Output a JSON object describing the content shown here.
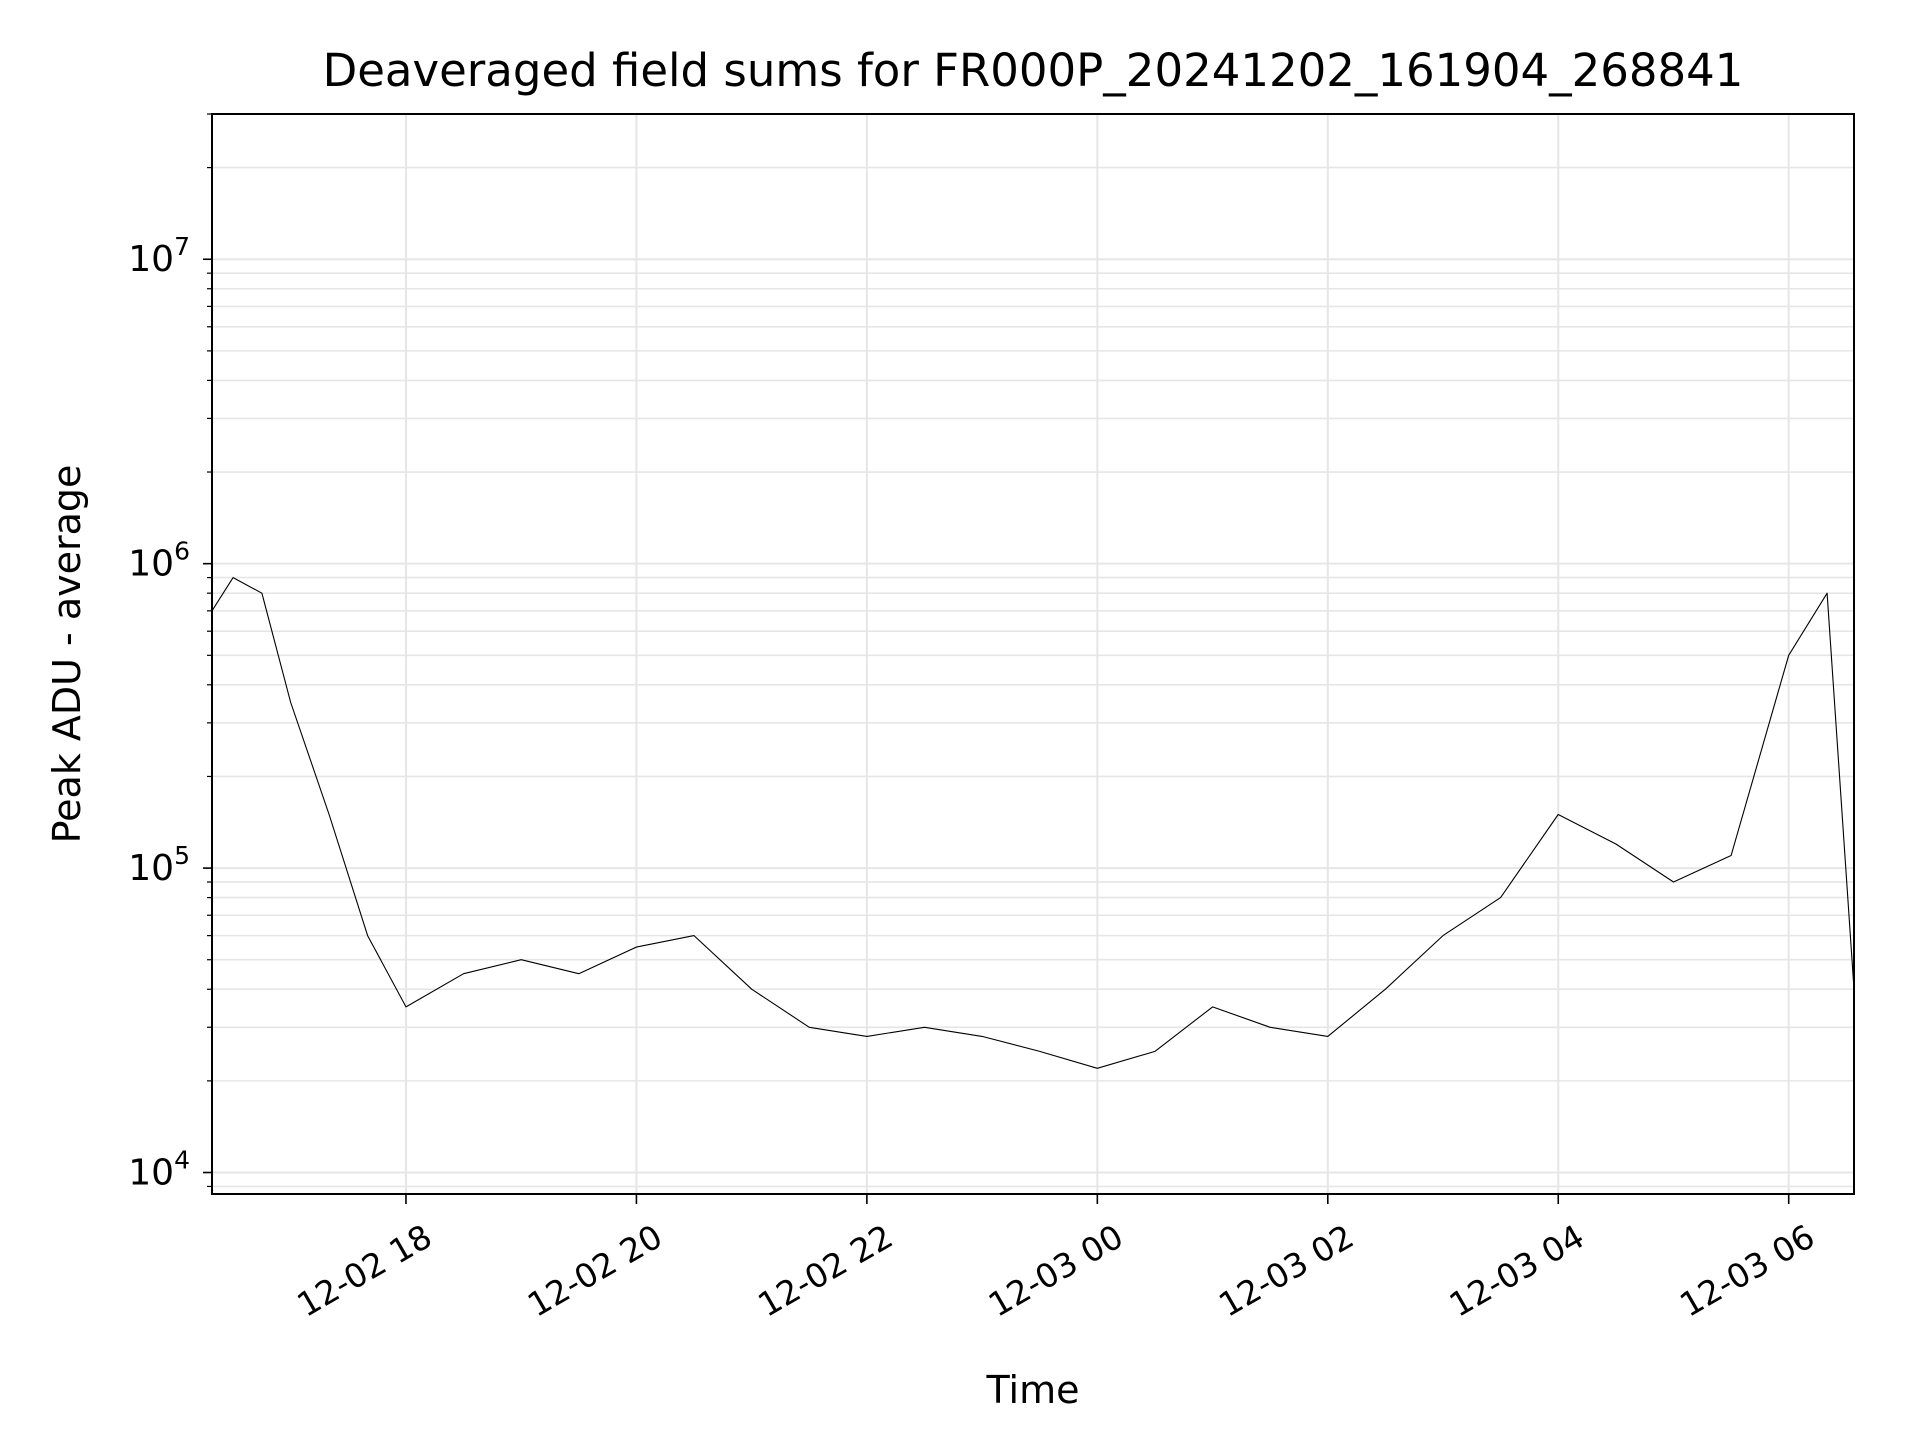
{
  "chart_data": {
    "type": "line",
    "title": "Deaveraged field sums for FR000P_20241202_161904_268841",
    "xlabel": "Time",
    "ylabel": "Peak ADU - average",
    "y_scale": "log",
    "ylim": [
      8500,
      30000000
    ],
    "xlim": [
      "2024-12-02 16:19",
      "2024-12-03 06:34"
    ],
    "grid": true,
    "line_color": "#000000",
    "grid_color": "#e6e6e6",
    "x_ticks": [
      {
        "t": "2024-12-02 18:00",
        "label": "12-02 18"
      },
      {
        "t": "2024-12-02 20:00",
        "label": "12-02 20"
      },
      {
        "t": "2024-12-02 22:00",
        "label": "12-02 22"
      },
      {
        "t": "2024-12-03 00:00",
        "label": "12-03 00"
      },
      {
        "t": "2024-12-03 02:00",
        "label": "12-03 02"
      },
      {
        "t": "2024-12-03 04:00",
        "label": "12-03 04"
      },
      {
        "t": "2024-12-03 06:00",
        "label": "12-03 06"
      }
    ],
    "y_ticks": [
      {
        "value": 10000,
        "base": "10",
        "exp": "4"
      },
      {
        "value": 100000,
        "base": "10",
        "exp": "5"
      },
      {
        "value": 1000000,
        "base": "10",
        "exp": "6"
      },
      {
        "value": 10000000,
        "base": "10",
        "exp": "7"
      }
    ],
    "series": [
      {
        "x": [
          "2024-12-02 16:19",
          "2024-12-02 16:30",
          "2024-12-02 16:45",
          "2024-12-02 17:00",
          "2024-12-02 17:20",
          "2024-12-02 17:40",
          "2024-12-02 18:00",
          "2024-12-02 18:30",
          "2024-12-02 19:00",
          "2024-12-02 19:30",
          "2024-12-02 20:00",
          "2024-12-02 20:30",
          "2024-12-02 21:00",
          "2024-12-02 21:30",
          "2024-12-02 22:00",
          "2024-12-02 22:30",
          "2024-12-02 23:00",
          "2024-12-02 23:30",
          "2024-12-03 00:00",
          "2024-12-03 00:30",
          "2024-12-03 01:00",
          "2024-12-03 01:30",
          "2024-12-03 02:00",
          "2024-12-03 02:30",
          "2024-12-03 03:00",
          "2024-12-03 03:30",
          "2024-12-03 04:00",
          "2024-12-03 04:30",
          "2024-12-03 05:00",
          "2024-12-03 05:30",
          "2024-12-03 06:00",
          "2024-12-03 06:20",
          "2024-12-03 06:34"
        ],
        "y": [
          700000,
          900000,
          800000,
          350000,
          150000,
          60000,
          35000,
          45000,
          50000,
          45000,
          55000,
          60000,
          40000,
          30000,
          28000,
          30000,
          28000,
          25000,
          22000,
          25000,
          35000,
          30000,
          28000,
          40000,
          60000,
          80000,
          150000,
          120000,
          90000,
          110000,
          500000,
          800000,
          40000
        ]
      }
    ]
  }
}
